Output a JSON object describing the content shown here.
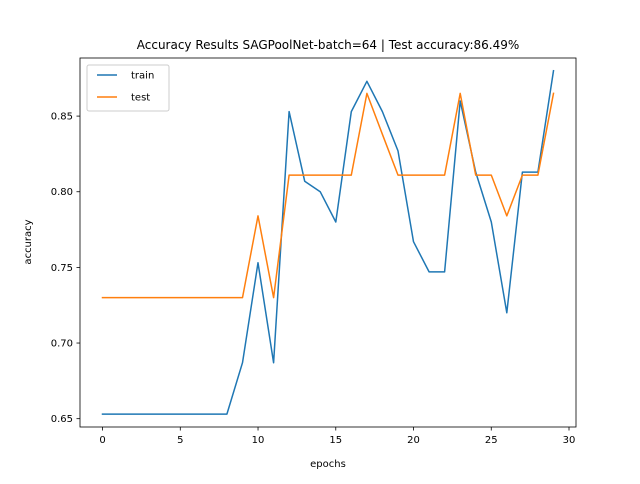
{
  "chart_data": {
    "type": "line",
    "title": "Accuracy Results SAGPoolNet-batch=64 | Test accuracy:86.49%",
    "xlabel": "epochs",
    "ylabel": "accuracy",
    "xlim": [
      -1.45,
      30.45
    ],
    "ylim": [
      0.6445,
      0.8884
    ],
    "xticks": [
      0,
      5,
      10,
      15,
      20,
      25,
      30
    ],
    "yticks": [
      0.65,
      0.7,
      0.75,
      0.8,
      0.85
    ],
    "ytick_labels": [
      "0.65",
      "0.70",
      "0.75",
      "0.80",
      "0.85"
    ],
    "grid": false,
    "legend_position": "upper-left",
    "x": [
      0,
      1,
      2,
      3,
      4,
      5,
      6,
      7,
      8,
      9,
      10,
      11,
      12,
      13,
      14,
      15,
      16,
      17,
      18,
      19,
      20,
      21,
      22,
      23,
      24,
      25,
      26,
      27,
      28,
      29
    ],
    "series": [
      {
        "name": "train",
        "color": "#1f77b4",
        "values": [
          0.653,
          0.653,
          0.653,
          0.653,
          0.653,
          0.653,
          0.653,
          0.653,
          0.653,
          0.687,
          0.753,
          0.687,
          0.853,
          0.807,
          0.8,
          0.78,
          0.853,
          0.873,
          0.853,
          0.827,
          0.767,
          0.747,
          0.747,
          0.86,
          0.813,
          0.78,
          0.72,
          0.813,
          0.813,
          0.88
        ]
      },
      {
        "name": "test",
        "color": "#ff7f0e",
        "values": [
          0.73,
          0.73,
          0.73,
          0.73,
          0.73,
          0.73,
          0.73,
          0.73,
          0.73,
          0.73,
          0.784,
          0.73,
          0.811,
          0.811,
          0.811,
          0.811,
          0.811,
          0.865,
          0.838,
          0.811,
          0.811,
          0.811,
          0.811,
          0.865,
          0.811,
          0.811,
          0.784,
          0.811,
          0.811,
          0.865
        ]
      }
    ]
  }
}
